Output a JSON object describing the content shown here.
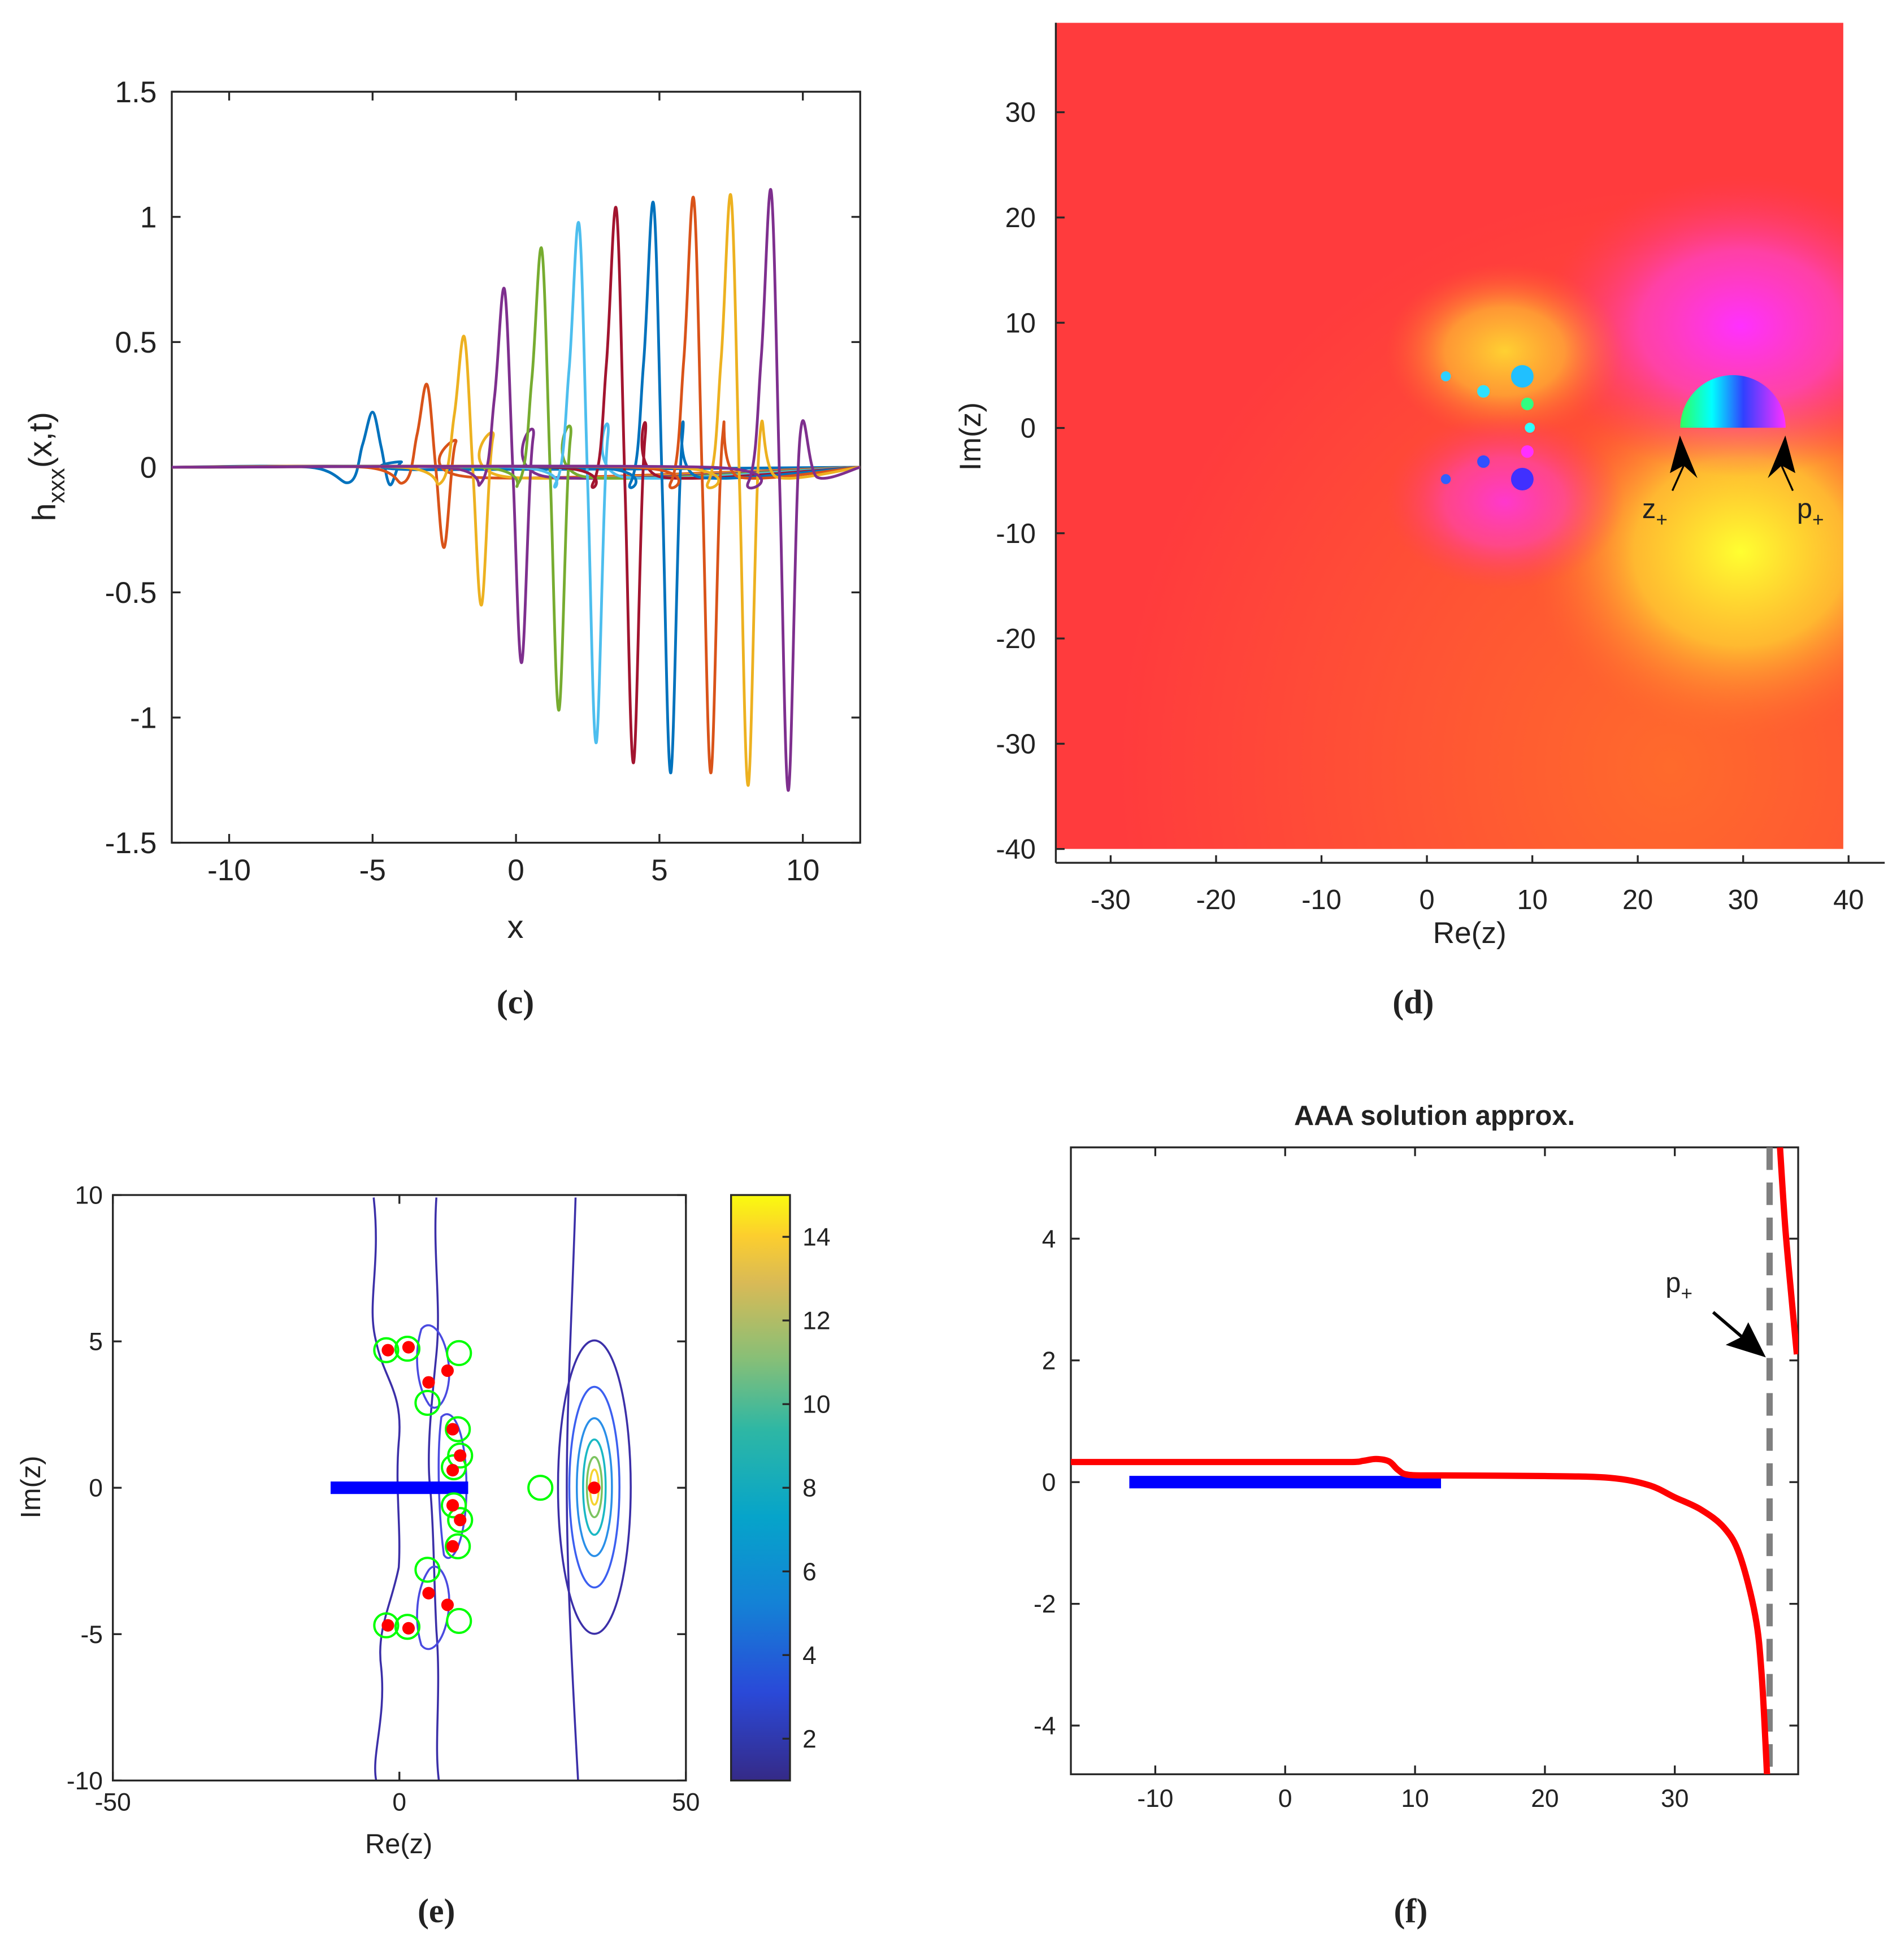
{
  "chart_data": [
    {
      "type": "line",
      "caption": "(c)",
      "xlabel": "x",
      "ylabel": [
        "h",
        "xxx",
        "(x,t)"
      ],
      "xlim": [
        -12,
        12
      ],
      "ylim": [
        -1.5,
        1.5
      ],
      "xticks": [
        -10,
        -5,
        0,
        5,
        10
      ],
      "yticks": [
        -1.5,
        -1,
        -0.5,
        0,
        0.5,
        1,
        1.5
      ],
      "box": true,
      "series": [
        {
          "color": "#0072BD",
          "x": [
            -12,
            -7.2,
            -5.8,
            -5.35,
            -5,
            -4.7,
            -4.4,
            -4,
            -3.4,
            12
          ],
          "values": [
            0,
            0,
            -0.06,
            0.09,
            0.22,
            0.08,
            -0.07,
            0.02,
            -0.01,
            0
          ]
        },
        {
          "color": "#D95319",
          "x": [
            -12,
            -5.3,
            -3.9,
            -3.45,
            -3.1,
            -2.8,
            -2.5,
            -2.1,
            -1.5,
            12
          ],
          "values": [
            0,
            0,
            -0.06,
            0.13,
            0.33,
            0,
            -0.32,
            0.1,
            -0.04,
            0
          ]
        },
        {
          "color": "#EDB120",
          "x": [
            -12,
            -4,
            -2.6,
            -2.15,
            -1.8,
            -1.5,
            -1.2,
            -0.8,
            -0.2,
            12
          ],
          "values": [
            0,
            0,
            -0.06,
            0.21,
            0.52,
            -0.02,
            -0.55,
            0.12,
            -0.04,
            0
          ]
        },
        {
          "color": "#7E2F8E",
          "x": [
            -12,
            -2.6,
            -1.2,
            -0.75,
            -0.4,
            -0.1,
            0.2,
            0.6,
            1.2,
            12
          ],
          "values": [
            0,
            0,
            -0.06,
            0.28,
            0.71,
            -0.04,
            -0.78,
            0.12,
            -0.04,
            0
          ]
        },
        {
          "color": "#77AC30",
          "x": [
            -12,
            -1.3,
            0.1,
            0.55,
            0.9,
            1.2,
            1.5,
            1.9,
            2.5,
            12
          ],
          "values": [
            0,
            0,
            -0.06,
            0.35,
            0.87,
            -0.05,
            -0.97,
            0.12,
            -0.04,
            0
          ]
        },
        {
          "color": "#4DBEEE",
          "x": [
            -12,
            0,
            1.4,
            1.85,
            2.2,
            2.5,
            2.8,
            3.2,
            3.8,
            12
          ],
          "values": [
            0,
            0,
            -0.06,
            0.39,
            0.97,
            -0.07,
            -1.1,
            0.12,
            -0.04,
            0
          ]
        },
        {
          "color": "#A2142F",
          "x": [
            -12,
            1.3,
            2.7,
            3.15,
            3.5,
            3.8,
            4.1,
            4.5,
            5.1,
            12
          ],
          "values": [
            0,
            0,
            -0.06,
            0.41,
            1.03,
            -0.08,
            -1.18,
            0.12,
            -0.04,
            0
          ]
        },
        {
          "color": "#0072BD",
          "x": [
            -12,
            2.6,
            4,
            4.45,
            4.8,
            5.1,
            5.4,
            5.8,
            6.4,
            12
          ],
          "values": [
            0,
            0,
            -0.06,
            0.42,
            1.05,
            -0.09,
            -1.22,
            0.12,
            -0.04,
            0
          ]
        },
        {
          "color": "#D95319",
          "x": [
            -12,
            4,
            5.4,
            5.85,
            6.2,
            6.5,
            6.8,
            7.2,
            7.8,
            12
          ],
          "values": [
            0,
            0,
            -0.06,
            0.43,
            1.07,
            -0.08,
            -1.22,
            0.12,
            -0.04,
            0
          ]
        },
        {
          "color": "#EDB120",
          "x": [
            -12,
            5.3,
            6.7,
            7.15,
            7.5,
            7.8,
            8.1,
            8.5,
            9.1,
            12
          ],
          "values": [
            0,
            0,
            -0.06,
            0.43,
            1.08,
            -0.1,
            -1.27,
            0.12,
            -0.04,
            0
          ]
        },
        {
          "color": "#7E2F8E",
          "x": [
            -12,
            6.7,
            8.1,
            8.55,
            8.9,
            9.2,
            9.5,
            9.9,
            10.5,
            12
          ],
          "values": [
            0,
            0,
            -0.06,
            0.44,
            1.1,
            -0.1,
            -1.29,
            0.12,
            -0.04,
            0
          ]
        }
      ]
    },
    {
      "type": "image",
      "caption": "(d)",
      "xlabel": "Re(z)",
      "ylabel": "Im(z)",
      "xlim": [
        -35.2,
        39.5
      ],
      "ylim": [
        -40,
        38.5
      ],
      "xticks": [
        -30,
        -20,
        -10,
        0,
        10,
        20,
        30,
        40
      ],
      "yticks": [
        -40,
        -30,
        -20,
        -10,
        0,
        10,
        20,
        30
      ],
      "box": false,
      "annotations": [
        {
          "text": "z",
          "sub": "+",
          "x": 24,
          "y": 0
        },
        {
          "text": "p",
          "sub": "+",
          "x": 34,
          "y": 0
        }
      ]
    },
    {
      "type": "contour",
      "caption": "(e)",
      "xlabel": "Re(z)",
      "ylabel": "Im(z)",
      "xlim": [
        -50,
        50
      ],
      "ylim": [
        -10,
        10
      ],
      "xticks": [
        -50,
        0,
        50
      ],
      "yticks": [
        -10,
        -5,
        0,
        5,
        10
      ],
      "box": true,
      "segment": {
        "x": [
          -12,
          12
        ],
        "y": 0,
        "color": "#0000ff"
      },
      "series": [
        {
          "marker": "ring",
          "color": "#00ff00",
          "x": [
            -2.3,
            1.4,
            10.4,
            4.9,
            10.2,
            10.6,
            9.5,
            9.5,
            10.6,
            10.2,
            4.9,
            10.4,
            -2.3,
            1.4,
            24.6
          ],
          "values": [
            4.7,
            4.75,
            4.6,
            2.9,
            2.0,
            1.1,
            0.7,
            -0.6,
            -1.1,
            -2.0,
            -2.8,
            -4.55,
            -4.7,
            -4.75,
            0
          ]
        },
        {
          "marker": "dot",
          "color": "#ff0000",
          "x": [
            -2,
            1.6,
            5.1,
            8.4,
            9.3,
            9.3,
            10.6,
            9.3,
            10.6,
            9.3,
            5.1,
            8.4,
            -2,
            1.6,
            34
          ],
          "values": [
            4.7,
            4.8,
            3.6,
            4.0,
            2.0,
            0.6,
            1.1,
            -0.6,
            -1.1,
            -2.0,
            -3.6,
            -4.0,
            -4.7,
            -4.8,
            0
          ]
        }
      ],
      "colorbar": {
        "lim": [
          1,
          15
        ],
        "ticks": [
          2,
          4,
          6,
          8,
          10,
          12,
          14
        ]
      }
    },
    {
      "type": "line",
      "caption": "(f)",
      "title": "AAA solution approx.",
      "xlim": [
        -16.5,
        39.5
      ],
      "ylim": [
        -4.8,
        5.5
      ],
      "xticks": [
        -10,
        0,
        10,
        20,
        30
      ],
      "yticks": [
        -4,
        -2,
        0,
        2,
        4
      ],
      "box": true,
      "segment": {
        "x": [
          -12,
          12
        ],
        "y": 0,
        "color": "#0000ff"
      },
      "pole": {
        "x": 37.3,
        "text": "p",
        "sub": "+",
        "color": "#808080"
      },
      "series": [
        {
          "color": "#ff0000",
          "x": [
            -16.5,
            -10,
            0,
            5,
            6,
            7,
            8,
            8.7,
            9.5,
            12,
            20,
            25,
            28,
            30,
            32,
            33.8,
            35,
            36.2,
            36.7,
            37.1,
            37.5,
            38.1,
            38.5,
            39,
            39.4
          ],
          "values": [
            0.33,
            0.33,
            0.33,
            0.33,
            0.35,
            0.38,
            0.34,
            0.2,
            0.12,
            0.11,
            0.1,
            0.07,
            -0.05,
            -0.25,
            -0.45,
            -0.75,
            -1.2,
            -2.2,
            -3.2,
            -4.8,
            null,
            5.5,
            4.2,
            3.0,
            2.1
          ]
        }
      ]
    }
  ]
}
